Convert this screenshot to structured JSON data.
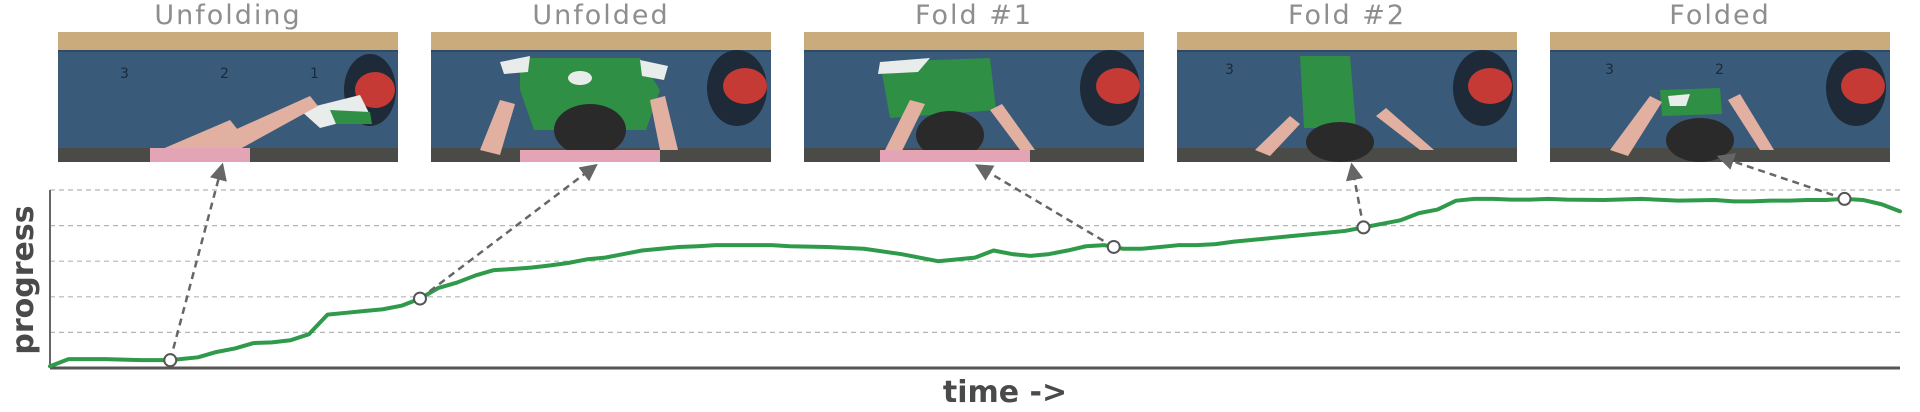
{
  "chart_data": {
    "type": "line",
    "title": "",
    "xlabel": "time ->",
    "ylabel": "progress",
    "xlim": [
      0,
      100
    ],
    "ylim": [
      0,
      5
    ],
    "grid": "horizontal dashed",
    "series": [
      {
        "name": "progress",
        "color": "#2e9a4a",
        "x": [
          0,
          1,
          3,
          5,
          6.5,
          8,
          9,
          10,
          11,
          12,
          13,
          14,
          15,
          16,
          17,
          18,
          19,
          20,
          20.5,
          21,
          22,
          23,
          24,
          25,
          26,
          27,
          28,
          29,
          30,
          31,
          32,
          33,
          34,
          35,
          36,
          37,
          38,
          39,
          40,
          42,
          44,
          46,
          48,
          50,
          51,
          52,
          53,
          54,
          55,
          56,
          57,
          58,
          59,
          60,
          61,
          62,
          63,
          64,
          65,
          66,
          67,
          68,
          69,
          70,
          71,
          72,
          73,
          74,
          75,
          76,
          77,
          78,
          79,
          80,
          81,
          82,
          84,
          86,
          88,
          90,
          91,
          92,
          93,
          94,
          95,
          96,
          97,
          98,
          99,
          100
        ],
        "values": [
          0.05,
          0.25,
          0.25,
          0.22,
          0.22,
          0.3,
          0.45,
          0.55,
          0.7,
          0.72,
          0.78,
          0.95,
          1.5,
          1.55,
          1.6,
          1.65,
          1.75,
          1.95,
          2.1,
          2.25,
          2.4,
          2.6,
          2.75,
          2.78,
          2.82,
          2.88,
          2.95,
          3.05,
          3.1,
          3.2,
          3.3,
          3.35,
          3.4,
          3.42,
          3.45,
          3.45,
          3.45,
          3.45,
          3.42,
          3.4,
          3.35,
          3.2,
          3.0,
          3.1,
          3.3,
          3.2,
          3.15,
          3.2,
          3.3,
          3.42,
          3.45,
          3.35,
          3.35,
          3.4,
          3.45,
          3.45,
          3.48,
          3.55,
          3.6,
          3.65,
          3.7,
          3.75,
          3.8,
          3.85,
          3.95,
          4.05,
          4.15,
          4.35,
          4.45,
          4.7,
          4.75,
          4.75,
          4.73,
          4.73,
          4.75,
          4.73,
          4.72,
          4.75,
          4.7,
          4.72,
          4.68,
          4.68,
          4.7,
          4.7,
          4.72,
          4.72,
          4.75,
          4.72,
          4.6,
          4.4
        ]
      }
    ],
    "annotations": [
      {
        "label": "Unfolding",
        "x": 6.5
      },
      {
        "label": "Unfolded",
        "x": 20
      },
      {
        "label": "Fold #1",
        "x": 57.5
      },
      {
        "label": "Fold #2",
        "x": 71
      },
      {
        "label": "Folded",
        "x": 97
      }
    ]
  }
}
